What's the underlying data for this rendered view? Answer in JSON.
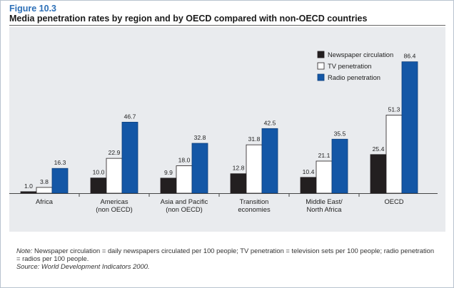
{
  "figure": {
    "label": "Figure 10.3",
    "title": "Media penetration rates by region and by OECD compared with non-OECD countries"
  },
  "chart_data": {
    "type": "bar",
    "categories": [
      "Africa",
      "Americas (non OECD)",
      "Asia and Pacific (non OECD)",
      "Transition economies",
      "Middle East/ North Africa",
      "OECD"
    ],
    "category_lines": [
      [
        "Africa"
      ],
      [
        "Americas",
        "(non OECD)"
      ],
      [
        "Asia and Pacific",
        "(non OECD)"
      ],
      [
        "Transition",
        "economies"
      ],
      [
        "Middle East/",
        "North Africa"
      ],
      [
        "OECD"
      ]
    ],
    "series": [
      {
        "name": "Newspaper circulation",
        "values": [
          1.0,
          10.0,
          9.9,
          12.8,
          10.4,
          25.4
        ],
        "labels": [
          "1.0",
          "10.0",
          "9.9",
          "12.8",
          "10.4",
          "25.4"
        ],
        "color": "#231f20",
        "stroke": "#231f20"
      },
      {
        "name": "TV penetration",
        "values": [
          3.8,
          22.9,
          18.0,
          31.8,
          21.1,
          51.3
        ],
        "labels": [
          "3.8",
          "22.9",
          "18.0",
          "31.8",
          "21.1",
          "51.3"
        ],
        "color": "#ffffff",
        "stroke": "#231f20"
      },
      {
        "name": "Radio penetration",
        "values": [
          16.3,
          46.7,
          32.8,
          42.5,
          35.5,
          86.4
        ],
        "labels": [
          "16.3",
          "46.7",
          "32.8",
          "42.5",
          "35.5",
          "86.4"
        ],
        "color": "#1457a6",
        "stroke": "#0d3f7c"
      }
    ],
    "ylim": [
      0,
      90
    ],
    "legend_position": "top-right",
    "grid": false
  },
  "notes": {
    "note_label": "Note:",
    "note_text": " Newspaper circulation = daily newspapers circulated per 100 people; TV penetration = television sets per 100 people; radio penetration = radios per 100 people.",
    "source": "Source: World Development Indicators 2000."
  }
}
